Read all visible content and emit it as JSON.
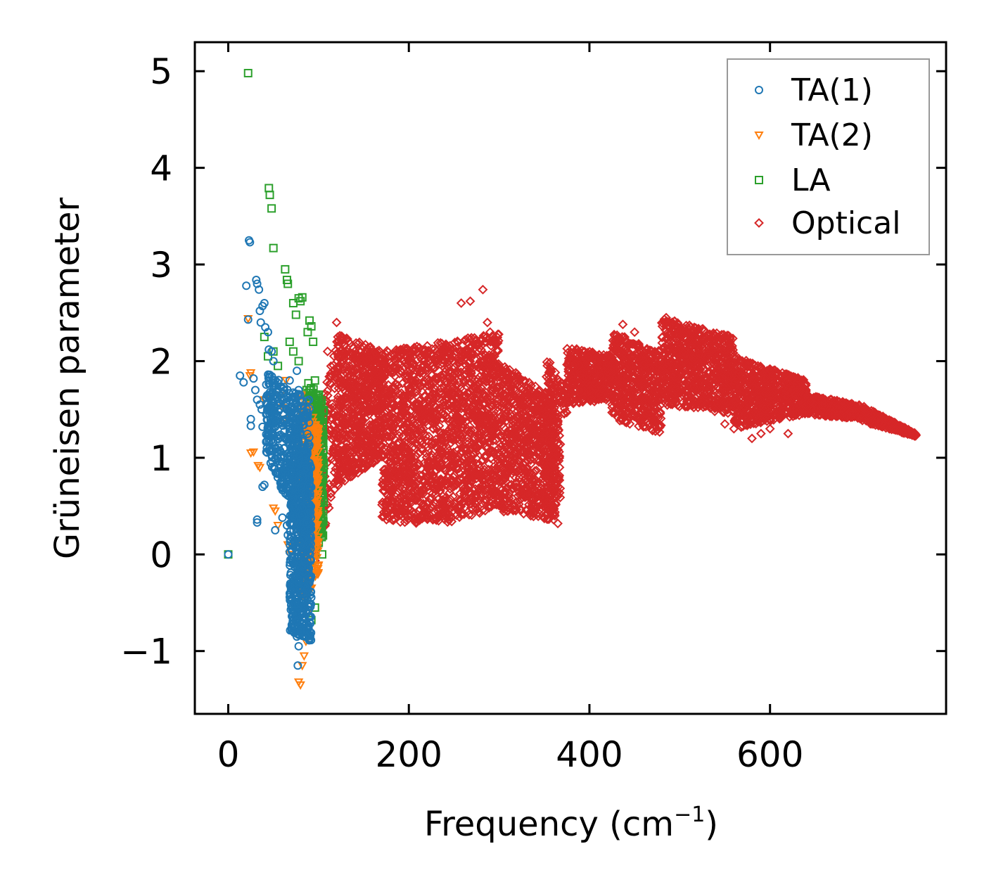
{
  "chart_data": {
    "type": "scatter",
    "title": "",
    "xlabel": "Frequency (cm",
    "xlabel_sup": "−1",
    "xlabel_close": ")",
    "ylabel": "Grüneisen parameter",
    "xlim": [
      -37,
      795
    ],
    "ylim": [
      -1.65,
      5.3
    ],
    "xticks": [
      0,
      200,
      400,
      600
    ],
    "xtick_labels": [
      "0",
      "200",
      "400",
      "600"
    ],
    "yticks": [
      -1,
      0,
      1,
      2,
      3,
      4,
      5
    ],
    "ytick_labels": [
      "−1",
      "0",
      "1",
      "2",
      "3",
      "4",
      "5"
    ],
    "legend_position": "top-right",
    "series": [
      {
        "name": "TA(1)",
        "color": "#1f77b4",
        "marker": "circle",
        "points": [
          [
            0,
            0
          ],
          [
            20,
            2.78
          ],
          [
            22,
            2.43
          ],
          [
            23,
            3.25
          ],
          [
            24,
            3.23
          ],
          [
            31,
            2.84
          ],
          [
            32,
            2.8
          ],
          [
            32,
            0.36
          ],
          [
            32,
            0.33
          ],
          [
            34,
            2.74
          ],
          [
            35,
            2.52
          ],
          [
            36,
            2.4
          ],
          [
            38,
            2.57
          ],
          [
            40,
            2.6
          ],
          [
            41,
            2.35
          ],
          [
            44,
            2.3
          ],
          [
            45,
            2.12
          ],
          [
            48,
            2.1
          ],
          [
            50,
            2.0
          ],
          [
            13,
            1.85
          ],
          [
            17,
            1.78
          ],
          [
            25,
            1.4
          ],
          [
            25,
            1.33
          ],
          [
            28,
            1.82
          ],
          [
            30,
            1.7
          ],
          [
            32,
            1.6
          ],
          [
            35,
            1.55
          ],
          [
            37,
            1.5
          ],
          [
            38,
            1.32
          ],
          [
            38,
            0.7
          ],
          [
            40,
            0.72
          ],
          [
            42,
            1.45
          ],
          [
            45,
            1.2
          ],
          [
            48,
            1.3
          ],
          [
            52,
            1.1
          ],
          [
            55,
            1.2
          ],
          [
            55,
            0.85
          ],
          [
            58,
            1.0
          ],
          [
            60,
            0.38
          ],
          [
            52,
            0.25
          ],
          [
            65,
            0.3
          ],
          [
            66,
            0.2
          ],
          [
            68,
            1.8
          ],
          [
            70,
            1.6
          ],
          [
            72,
            1.5
          ],
          [
            74,
            1.2
          ],
          [
            76,
            1.9
          ],
          [
            78,
            1.7
          ],
          [
            80,
            1.4
          ],
          [
            82,
            1.1
          ],
          [
            70,
            0.05
          ],
          [
            72,
            -0.1
          ],
          [
            73,
            -0.3
          ],
          [
            74,
            -0.5
          ],
          [
            75,
            -0.7
          ],
          [
            76,
            -0.85
          ],
          [
            77,
            -1.15
          ],
          [
            78,
            -0.95
          ],
          [
            80,
            -0.8
          ],
          [
            81,
            -0.6
          ],
          [
            83,
            -0.4
          ]
        ],
        "clusters": [
          {
            "x": [
              42,
              90
            ],
            "ylo": [
              1.0,
              0.1
            ],
            "yhi": [
              1.9,
              1.6
            ],
            "n": 420
          },
          {
            "x": [
              68,
              92
            ],
            "ylo": [
              -0.8,
              -0.9
            ],
            "yhi": [
              1.6,
              0.9
            ],
            "n": 620
          }
        ]
      },
      {
        "name": "TA(2)",
        "color": "#ff7f0e",
        "marker": "triangle",
        "points": [
          [
            22,
            2.44
          ],
          [
            25,
            1.88
          ],
          [
            24,
            1.85
          ],
          [
            25,
            1.05
          ],
          [
            28,
            1.06
          ],
          [
            33,
            0.92
          ],
          [
            35,
            0.9
          ],
          [
            40,
            1.6
          ],
          [
            43,
            1.5
          ],
          [
            46,
            1.6
          ],
          [
            50,
            0.48
          ],
          [
            52,
            0.45
          ],
          [
            55,
            0.3
          ],
          [
            58,
            1.65
          ],
          [
            60,
            1.52
          ],
          [
            62,
            1.4
          ],
          [
            64,
            1.8
          ],
          [
            66,
            0.1
          ],
          [
            68,
            0.0
          ],
          [
            78,
            -1.32
          ],
          [
            80,
            -1.35
          ],
          [
            82,
            -1.15
          ],
          [
            84,
            -1.05
          ],
          [
            86,
            -0.9
          ],
          [
            88,
            -0.6
          ],
          [
            90,
            -0.35
          ],
          [
            86,
            1.55
          ],
          [
            88,
            1.3
          ],
          [
            90,
            1.1
          ],
          [
            92,
            0.8
          ],
          [
            94,
            0.6
          ]
        ],
        "clusters": [
          {
            "x": [
              80,
              100
            ],
            "ylo": [
              -0.6,
              -0.2
            ],
            "yhi": [
              1.7,
              1.3
            ],
            "n": 380
          }
        ]
      },
      {
        "name": "LA",
        "color": "#2ca02c",
        "marker": "square",
        "points": [
          [
            0,
            0
          ],
          [
            22,
            4.98
          ],
          [
            45,
            3.79
          ],
          [
            46,
            3.72
          ],
          [
            48,
            3.58
          ],
          [
            50,
            3.17
          ],
          [
            63,
            2.95
          ],
          [
            65,
            2.84
          ],
          [
            66,
            2.8
          ],
          [
            72,
            2.6
          ],
          [
            75,
            2.48
          ],
          [
            78,
            2.65
          ],
          [
            80,
            2.62
          ],
          [
            82,
            2.66
          ],
          [
            40,
            2.25
          ],
          [
            44,
            2.05
          ],
          [
            50,
            2.1
          ],
          [
            55,
            1.95
          ],
          [
            68,
            2.2
          ],
          [
            72,
            2.1
          ],
          [
            78,
            2.0
          ],
          [
            90,
            2.42
          ],
          [
            92,
            2.36
          ],
          [
            88,
            2.3
          ],
          [
            94,
            2.2
          ],
          [
            96,
            1.8
          ],
          [
            100,
            1.6
          ],
          [
            102,
            1.25
          ],
          [
            104,
            1.2
          ],
          [
            104,
            0.0
          ],
          [
            102,
            0.3
          ],
          [
            96,
            -0.55
          ],
          [
            92,
            -0.68
          ]
        ],
        "clusters": [
          {
            "x": [
              86,
              106
            ],
            "ylo": [
              -0.2,
              0.2
            ],
            "yhi": [
              1.8,
              1.6
            ],
            "n": 340
          }
        ]
      },
      {
        "name": "Optical",
        "color": "#d62728",
        "marker": "diamond",
        "points": [
          [
            82,
            -0.4
          ],
          [
            86,
            -0.2
          ],
          [
            90,
            0.05
          ],
          [
            95,
            0.35
          ],
          [
            268,
            2.62
          ],
          [
            282,
            2.74
          ],
          [
            287,
            2.4
          ],
          [
            290,
            2.3
          ],
          [
            258,
            2.6
          ],
          [
            335,
            0.4
          ],
          [
            322,
            0.52
          ],
          [
            365,
            0.32
          ],
          [
            485,
            2.45
          ],
          [
            580,
            1.2
          ],
          [
            590,
            1.25
          ],
          [
            600,
            1.3
          ],
          [
            630,
            1.7
          ],
          [
            645,
            1.58
          ],
          [
            760,
            1.23
          ],
          [
            110,
            2.1
          ],
          [
            120,
            2.4
          ],
          [
            450,
            2.3
          ],
          [
            437,
            2.38
          ],
          [
            470,
            2.05
          ],
          [
            550,
            1.35
          ],
          [
            560,
            1.3
          ],
          [
            620,
            1.25
          ]
        ],
        "clusters": [
          {
            "x": [
              88,
              120
            ],
            "ylo": [
              -0.4,
              0.6
            ],
            "yhi": [
              1.0,
              2.2
            ],
            "n": 200
          },
          {
            "x": [
              120,
              170
            ],
            "ylo": [
              0.7,
              1.0
            ],
            "yhi": [
              2.3,
              2.1
            ],
            "n": 700
          },
          {
            "x": [
              170,
              240
            ],
            "ylo": [
              0.35,
              0.3
            ],
            "yhi": [
              2.1,
              2.2
            ],
            "n": 950
          },
          {
            "x": [
              240,
              300
            ],
            "ylo": [
              0.3,
              0.5
            ],
            "yhi": [
              2.2,
              2.3
            ],
            "n": 800
          },
          {
            "x": [
              300,
              362
            ],
            "ylo": [
              0.45,
              0.35
            ],
            "yhi": [
              2.0,
              1.6
            ],
            "n": 750
          },
          {
            "x": [
              350,
              368
            ],
            "ylo": [
              0.3,
              0.5
            ],
            "yhi": [
              1.7,
              1.4
            ],
            "n": 120
          },
          {
            "x": [
              352,
              375
            ],
            "ylo": [
              1.7,
              1.4
            ],
            "yhi": [
              2.05,
              1.7
            ],
            "n": 60
          },
          {
            "x": [
              375,
              425
            ],
            "ylo": [
              1.55,
              1.6
            ],
            "yhi": [
              2.15,
              2.05
            ],
            "n": 450
          },
          {
            "x": [
              425,
              480
            ],
            "ylo": [
              1.4,
              1.25
            ],
            "yhi": [
              2.3,
              2.1
            ],
            "n": 550
          },
          {
            "x": [
              480,
              560
            ],
            "ylo": [
              1.55,
              1.45
            ],
            "yhi": [
              2.45,
              2.25
            ],
            "n": 800
          },
          {
            "x": [
              560,
              640
            ],
            "ylo": [
              1.3,
              1.45
            ],
            "yhi": [
              2.05,
              1.8
            ],
            "n": 650
          },
          {
            "x": [
              640,
              700
            ],
            "ylo": [
              1.45,
              1.4
            ],
            "yhi": [
              1.65,
              1.55
            ],
            "n": 350
          },
          {
            "x": [
              700,
              762
            ],
            "ylo": [
              1.38,
              1.22
            ],
            "yhi": [
              1.55,
              1.25
            ],
            "n": 300
          }
        ]
      }
    ]
  }
}
